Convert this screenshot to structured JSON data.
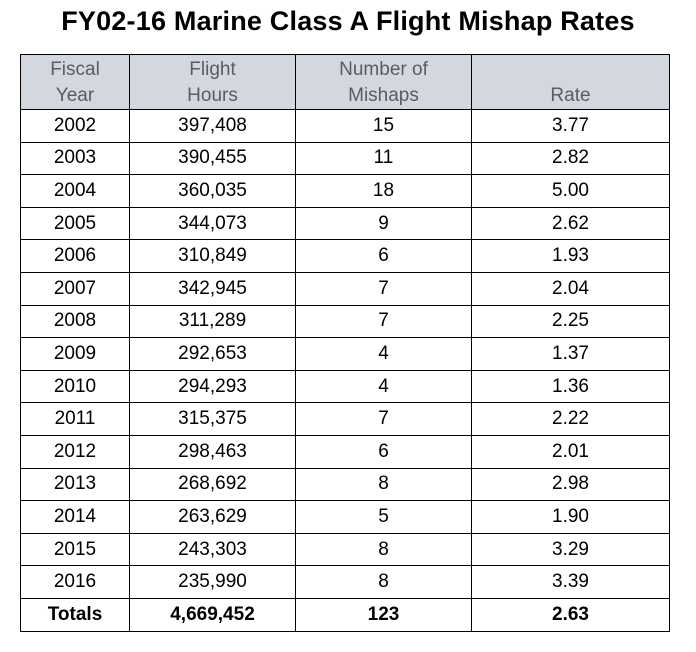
{
  "title": "FY02-16 Marine Class A Flight Mishap Rates",
  "headers": {
    "year": [
      "Fiscal",
      "Year"
    ],
    "hours": [
      "Flight",
      "Hours"
    ],
    "mishaps": [
      "Number of",
      "Mishaps"
    ],
    "rate": [
      "",
      "Rate"
    ]
  },
  "rows": [
    {
      "year": "2002",
      "hours": "397,408",
      "mishaps": "15",
      "rate": "3.77"
    },
    {
      "year": "2003",
      "hours": "390,455",
      "mishaps": "11",
      "rate": "2.82"
    },
    {
      "year": "2004",
      "hours": "360,035",
      "mishaps": "18",
      "rate": "5.00"
    },
    {
      "year": "2005",
      "hours": "344,073",
      "mishaps": "9",
      "rate": "2.62"
    },
    {
      "year": "2006",
      "hours": "310,849",
      "mishaps": "6",
      "rate": "1.93"
    },
    {
      "year": "2007",
      "hours": "342,945",
      "mishaps": "7",
      "rate": "2.04"
    },
    {
      "year": "2008",
      "hours": "311,289",
      "mishaps": "7",
      "rate": "2.25"
    },
    {
      "year": "2009",
      "hours": "292,653",
      "mishaps": "4",
      "rate": "1.37"
    },
    {
      "year": "2010",
      "hours": "294,293",
      "mishaps": "4",
      "rate": "1.36"
    },
    {
      "year": "2011",
      "hours": "315,375",
      "mishaps": "7",
      "rate": "2.22"
    },
    {
      "year": "2012",
      "hours": "298,463",
      "mishaps": "6",
      "rate": "2.01"
    },
    {
      "year": "2013",
      "hours": "268,692",
      "mishaps": "8",
      "rate": "2.98"
    },
    {
      "year": "2014",
      "hours": "263,629",
      "mishaps": "5",
      "rate": "1.90"
    },
    {
      "year": "2015",
      "hours": "243,303",
      "mishaps": "8",
      "rate": "3.29"
    },
    {
      "year": "2016",
      "hours": "235,990",
      "mishaps": "8",
      "rate": "3.39"
    }
  ],
  "totals": {
    "label": "Totals",
    "hours": "4,669,452",
    "mishaps": "123",
    "rate": "2.63"
  }
}
